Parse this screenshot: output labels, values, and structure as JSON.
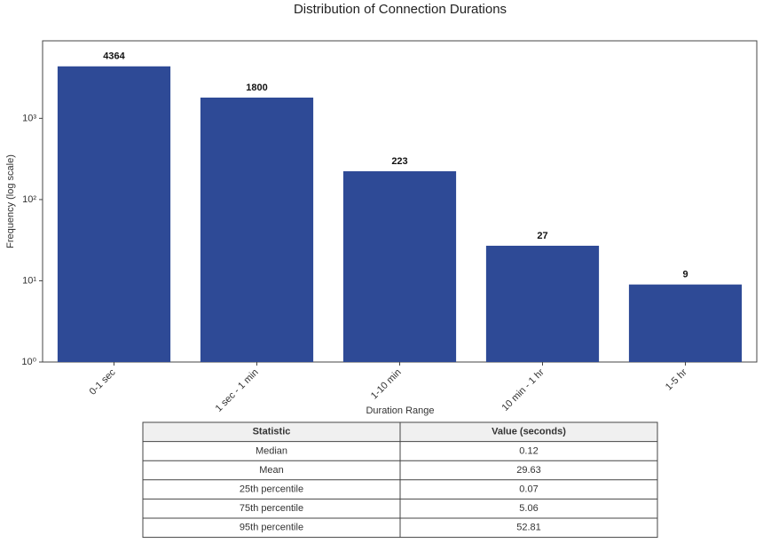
{
  "chart_data": {
    "type": "bar",
    "title": "Distribution of Connection Durations",
    "x_label": "Duration Range",
    "y_label": "Frequency (log scale)",
    "categories": [
      "0-1 sec",
      "1 sec - 1 min",
      "1-10 min",
      "10 min - 1 hr",
      "1-5 hr"
    ],
    "values": [
      4364,
      1800,
      223,
      27,
      9
    ],
    "color": "#2e4a96",
    "yscale": "log",
    "ylim": [
      1,
      9000
    ],
    "yticks": [
      {
        "value": 1,
        "label": "10⁰"
      },
      {
        "value": 10,
        "label": "10¹"
      },
      {
        "value": 100,
        "label": "10²"
      },
      {
        "value": 1000,
        "label": "10³"
      }
    ],
    "grid": false
  },
  "table": {
    "columns": [
      "Statistic",
      "Value (seconds)"
    ],
    "rows": [
      [
        "Median",
        0.12
      ],
      [
        "Mean",
        29.63
      ],
      [
        "25th percentile",
        0.07
      ],
      [
        "75th percentile",
        5.06
      ],
      [
        "95th percentile",
        52.81
      ]
    ]
  }
}
